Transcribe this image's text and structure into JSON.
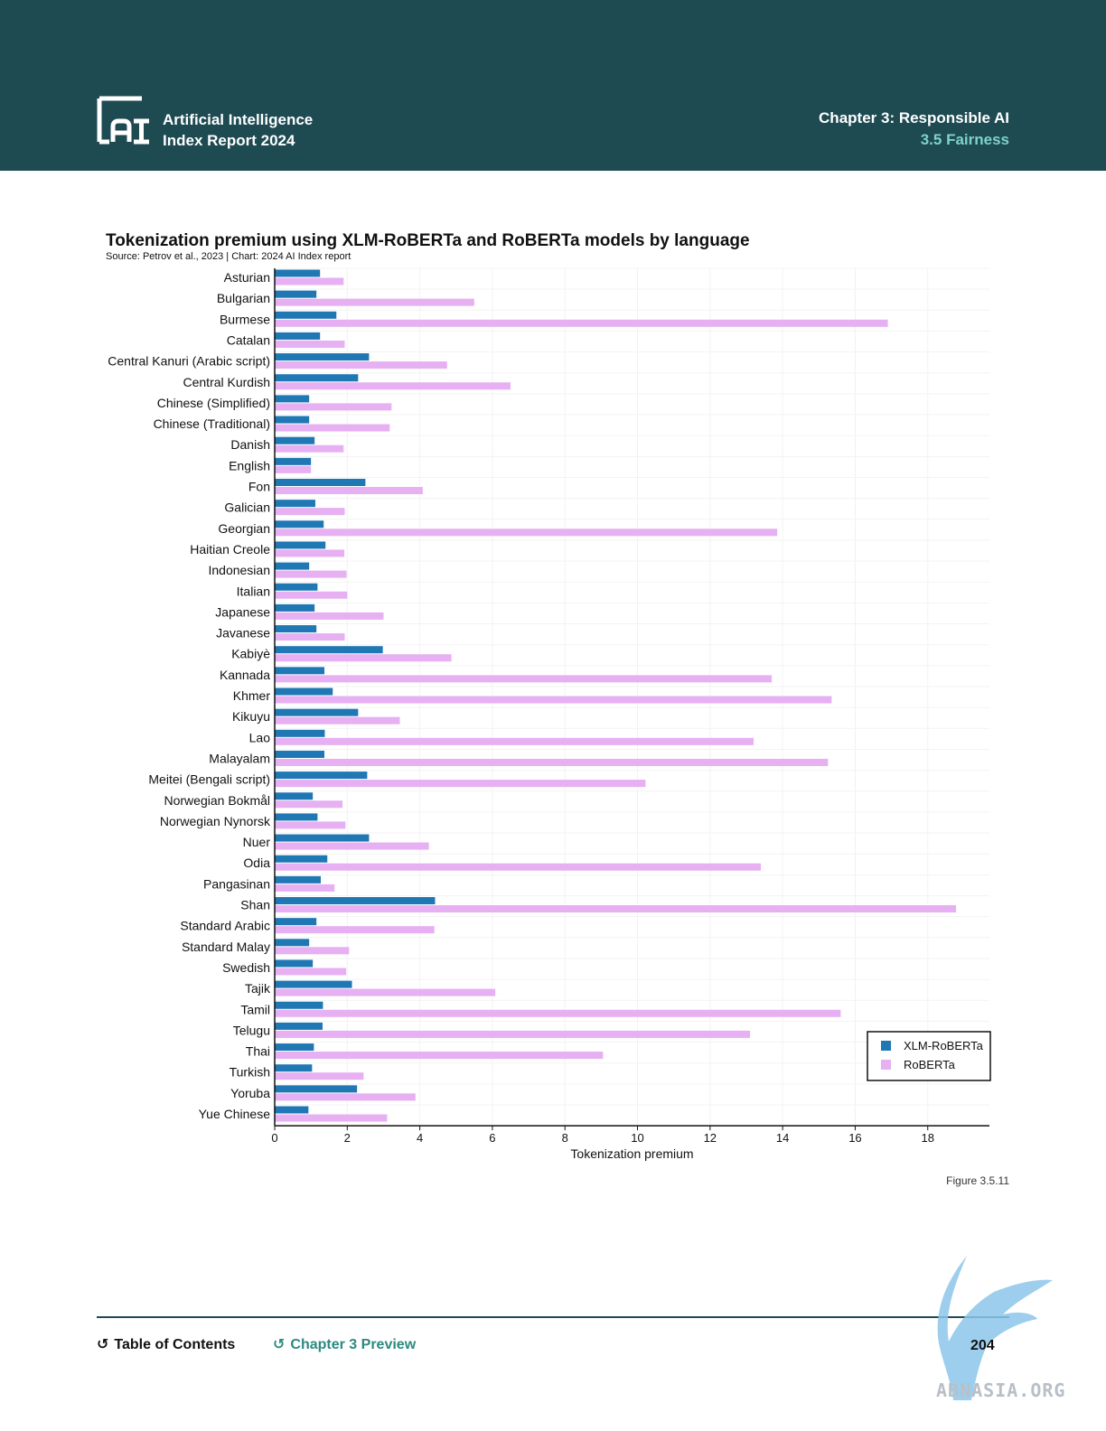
{
  "header": {
    "report_title_line1": "Artificial Intelligence",
    "report_title_line2": "Index Report 2024",
    "chapter_title": "Chapter 3: Responsible AI",
    "section_title": "3.5 Fairness"
  },
  "chart_title": "Tokenization premium using XLM-RoBERTa and RoBERTa models by language",
  "chart_source": "Source: Petrov et al., 2023 | Chart: 2024 AI Index report",
  "figure_label": "Figure 3.5.11",
  "footer": {
    "toc_label": "Table of Contents",
    "preview_label": "Chapter 3 Preview",
    "page_number": "204"
  },
  "watermark": "ABNASIA.ORG",
  "colors": {
    "header_bg": "#1e4a52",
    "xlm_roberta": "#1f77b4",
    "roberta": "#e6b0f2",
    "accent": "#7fd3c9"
  },
  "chart_data": {
    "type": "bar",
    "orientation": "horizontal",
    "xlabel": "Tokenization premium",
    "ylabel": "",
    "xlim": [
      0,
      19.7
    ],
    "xticks": [
      0,
      2,
      4,
      6,
      8,
      10,
      12,
      14,
      16,
      18
    ],
    "legend_position": "bottom-right",
    "categories": [
      "Asturian",
      "Bulgarian",
      "Burmese",
      "Catalan",
      "Central Kanuri (Arabic script)",
      "Central Kurdish",
      "Chinese (Simplified)",
      "Chinese (Traditional)",
      "Danish",
      "English",
      "Fon",
      "Galician",
      "Georgian",
      "Haitian Creole",
      "Indonesian",
      "Italian",
      "Japanese",
      "Javanese",
      "Kabiyè",
      "Kannada",
      "Khmer",
      "Kikuyu",
      "Lao",
      "Malayalam",
      "Meitei (Bengali script)",
      "Norwegian Bokmål",
      "Norwegian Nynorsk",
      "Nuer",
      "Odia",
      "Pangasinan",
      "Shan",
      "Standard Arabic",
      "Standard Malay",
      "Swedish",
      "Tajik",
      "Tamil",
      "Telugu",
      "Thai",
      "Turkish",
      "Yoruba",
      "Yue Chinese"
    ],
    "series": [
      {
        "name": "XLM-RoBERTa",
        "values": [
          1.25,
          1.15,
          1.7,
          1.25,
          2.6,
          2.3,
          0.95,
          0.95,
          1.1,
          1.0,
          2.5,
          1.12,
          1.35,
          1.4,
          0.95,
          1.18,
          1.1,
          1.15,
          2.98,
          1.37,
          1.6,
          2.3,
          1.38,
          1.37,
          2.55,
          1.05,
          1.18,
          2.6,
          1.45,
          1.27,
          4.42,
          1.15,
          0.95,
          1.05,
          2.13,
          1.33,
          1.32,
          1.08,
          1.03,
          2.27,
          0.93
        ]
      },
      {
        "name": "RoBERTa",
        "values": [
          1.9,
          5.5,
          16.9,
          1.93,
          4.75,
          6.5,
          3.22,
          3.17,
          1.9,
          1.0,
          4.08,
          1.93,
          13.85,
          1.92,
          1.98,
          2.0,
          3.0,
          1.93,
          4.87,
          13.7,
          15.35,
          3.45,
          13.2,
          15.25,
          10.22,
          1.87,
          1.95,
          4.25,
          13.4,
          1.65,
          18.78,
          4.4,
          2.05,
          1.97,
          6.08,
          15.6,
          13.1,
          9.05,
          2.45,
          3.88,
          3.1
        ]
      }
    ]
  }
}
